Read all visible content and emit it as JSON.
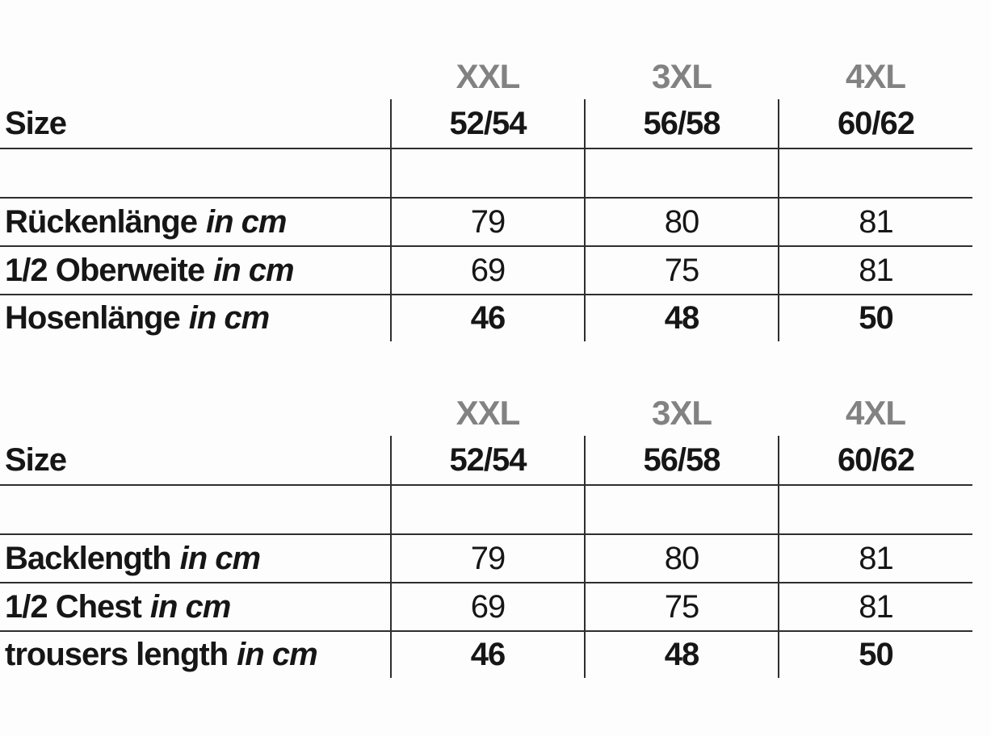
{
  "colors": {
    "size_class_gray": "#828282",
    "text": "#161616",
    "grid_line": "#2e2e2e",
    "background": "#fdfdfd"
  },
  "chart_data": [
    {
      "type": "table",
      "language": "German",
      "corner_label": "Size",
      "size_classes": [
        "XXL",
        "3XL",
        "4XL"
      ],
      "size_ranges": [
        "52/54",
        "56/58",
        "60/62"
      ],
      "rows": [
        {
          "label": "Rückenlänge",
          "unit": "in cm",
          "values": [
            "79",
            "80",
            "81"
          ],
          "value_style": "regular"
        },
        {
          "label": "1/2 Oberweite",
          "unit": "in cm",
          "values": [
            "69",
            "75",
            "81"
          ],
          "value_style": "regular"
        },
        {
          "label": "Hosenlänge",
          "unit": "in cm",
          "values": [
            "46",
            "48",
            "50"
          ],
          "value_style": "bold"
        }
      ]
    },
    {
      "type": "table",
      "language": "English",
      "corner_label": "Size",
      "size_classes": [
        "XXL",
        "3XL",
        "4XL"
      ],
      "size_ranges": [
        "52/54",
        "56/58",
        "60/62"
      ],
      "rows": [
        {
          "label": "Backlength",
          "unit": "in cm",
          "values": [
            "79",
            "80",
            "81"
          ],
          "value_style": "regular"
        },
        {
          "label": "1/2 Chest",
          "unit": "in cm",
          "values": [
            "69",
            "75",
            "81"
          ],
          "value_style": "regular"
        },
        {
          "label": "trousers length",
          "unit": "in cm",
          "values": [
            "46",
            "48",
            "50"
          ],
          "value_style": "bold"
        }
      ]
    }
  ]
}
